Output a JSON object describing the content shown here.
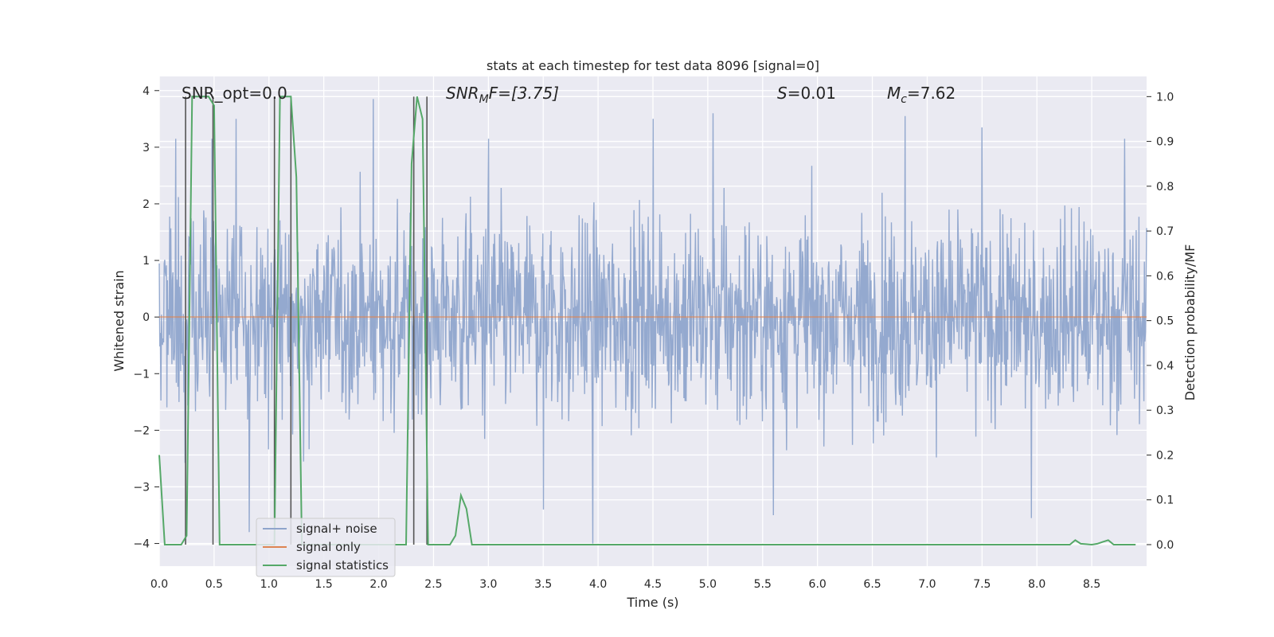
{
  "chart_data": {
    "type": "line",
    "title": "stats at each timestep for test data 8096 [signal=0]",
    "xlabel": "Time (s)",
    "ylabel": "Whitened strain",
    "y2label": "Detection probability/MF",
    "xlim": [
      0.0,
      9.0
    ],
    "ylim": [
      -4.4,
      4.25
    ],
    "y2lim": [
      -0.048,
      1.045
    ],
    "x_ticks": [
      0.0,
      0.5,
      1.0,
      1.5,
      2.0,
      2.5,
      3.0,
      3.5,
      4.0,
      4.5,
      5.0,
      5.5,
      6.0,
      6.5,
      7.0,
      7.5,
      8.0,
      8.5
    ],
    "x_tick_labels": [
      "0.0",
      "0.5",
      "1.0",
      "1.5",
      "2.0",
      "2.5",
      "3.0",
      "3.5",
      "4.0",
      "4.5",
      "5.0",
      "5.5",
      "6.0",
      "6.5",
      "7.0",
      "7.5",
      "8.0",
      "8.5"
    ],
    "y_ticks": [
      4,
      3,
      2,
      1,
      0,
      -1,
      -2,
      -3,
      -4
    ],
    "y_tick_labels": [
      "4",
      "3",
      "2",
      "1",
      "0",
      "−1",
      "−2",
      "−3",
      "−4"
    ],
    "y2_ticks": [
      1.0,
      0.9,
      0.8,
      0.7,
      0.6,
      0.5,
      0.4,
      0.3,
      0.2,
      0.1,
      0.0
    ],
    "y2_tick_labels": [
      "1.0",
      "0.9",
      "0.8",
      "0.7",
      "0.6",
      "0.5",
      "0.4",
      "0.3",
      "0.2",
      "0.1",
      "0.0"
    ],
    "grid": true,
    "legend_placement": "lower-left",
    "annotations": {
      "snr_opt": "SNR_opt=0.0",
      "snr_mf_base": "SNR",
      "snr_mf_sub": "M",
      "snr_mf_rest": "F=[3.75]",
      "s_var": "S",
      "s_rest": "=0.01",
      "mc_base": "M",
      "mc_sub": "c",
      "mc_rest": "=7.62"
    },
    "series": [
      {
        "name": "signal+ noise",
        "color": "#8fa5cc",
        "kind": "noise",
        "x_start": 0.0,
        "x_end": 9.0,
        "sample_count": 1800,
        "envelope": [
          -2.5,
          2.5
        ],
        "peaks": [
          {
            "x": 0.15,
            "y": 3.15
          },
          {
            "x": 0.48,
            "y": 3.15
          },
          {
            "x": 0.7,
            "y": 3.5
          },
          {
            "x": 0.82,
            "y": -3.8
          },
          {
            "x": 1.95,
            "y": 3.85
          },
          {
            "x": 3.0,
            "y": 3.15
          },
          {
            "x": 3.5,
            "y": -3.4
          },
          {
            "x": 3.95,
            "y": -4.0
          },
          {
            "x": 4.5,
            "y": 3.5
          },
          {
            "x": 5.05,
            "y": 3.6
          },
          {
            "x": 5.6,
            "y": -3.5
          },
          {
            "x": 6.8,
            "y": 3.55
          },
          {
            "x": 7.5,
            "y": 3.35
          },
          {
            "x": 7.95,
            "y": -3.55
          },
          {
            "x": 8.8,
            "y": 3.15
          }
        ]
      },
      {
        "name": "signal only",
        "color": "#dd8452",
        "kind": "line",
        "x": [
          0.0,
          9.0
        ],
        "y": [
          0.0,
          0.0
        ]
      },
      {
        "name": "signal statistics",
        "color": "#55a868",
        "kind": "line",
        "axis": "right",
        "x": [
          0.0,
          0.05,
          0.1,
          0.15,
          0.2,
          0.25,
          0.3,
          0.35,
          0.4,
          0.45,
          0.5,
          0.55,
          0.6,
          0.65,
          0.7,
          0.75,
          0.8,
          0.85,
          0.9,
          0.95,
          1.0,
          1.05,
          1.1,
          1.15,
          1.2,
          1.25,
          1.3,
          1.35,
          1.4,
          1.45,
          1.5,
          1.55,
          1.6,
          1.65,
          1.7,
          1.75,
          1.8,
          1.85,
          1.9,
          1.95,
          2.0,
          2.05,
          2.1,
          2.15,
          2.2,
          2.25,
          2.3,
          2.35,
          2.4,
          2.45,
          2.5,
          2.55,
          2.6,
          2.65,
          2.7,
          2.75,
          2.8,
          2.85,
          2.9,
          2.95,
          3.0,
          3.5,
          4.0,
          4.5,
          5.0,
          5.5,
          6.0,
          6.5,
          7.0,
          7.5,
          8.0,
          8.3,
          8.35,
          8.4,
          8.45,
          8.5,
          8.55,
          8.6,
          8.65,
          8.7,
          8.75,
          8.8,
          8.85,
          8.9
        ],
        "y": [
          0.2,
          0.0,
          0.0,
          0.0,
          0.0,
          0.02,
          1.0,
          1.0,
          1.0,
          1.0,
          0.98,
          0.0,
          0.0,
          0.0,
          0.0,
          0.0,
          0.0,
          0.0,
          0.0,
          0.0,
          0.0,
          0.0,
          1.0,
          1.0,
          1.0,
          0.82,
          0.0,
          0.0,
          0.0,
          0.0,
          0.0,
          0.0,
          0.0,
          0.0,
          0.0,
          0.0,
          0.0,
          0.0,
          0.0,
          0.0,
          0.0,
          0.0,
          0.0,
          0.0,
          0.0,
          0.0,
          0.85,
          1.0,
          0.95,
          0.0,
          0.0,
          0.0,
          0.0,
          0.0,
          0.02,
          0.11,
          0.08,
          0.0,
          0.0,
          0.0,
          0.0,
          0.0,
          0.0,
          0.0,
          0.0,
          0.0,
          0.0,
          0.0,
          0.0,
          0.0,
          0.0,
          0.0,
          0.01,
          0.002,
          0.001,
          0.0,
          0.002,
          0.006,
          0.01,
          0.0,
          0.0,
          0.0,
          0.0,
          0.0
        ]
      }
    ],
    "vlines": [
      {
        "x": 0.24,
        "y2": [
          0.0,
          1.0
        ]
      },
      {
        "x": 0.49,
        "y2": [
          0.0,
          1.0
        ]
      },
      {
        "x": 1.05,
        "y2": [
          0.0,
          1.0
        ]
      },
      {
        "x": 1.2,
        "y2": [
          0.0,
          1.0
        ]
      },
      {
        "x": 2.32,
        "y2": [
          0.0,
          1.0
        ]
      },
      {
        "x": 2.44,
        "y2": [
          0.0,
          1.0
        ]
      }
    ],
    "colors": {
      "plot_bg": "#eaeaf2",
      "grid": "#ffffff",
      "vline": "#555555",
      "legend_bg": "#eaeaf2",
      "legend_border": "#cccccc"
    }
  }
}
